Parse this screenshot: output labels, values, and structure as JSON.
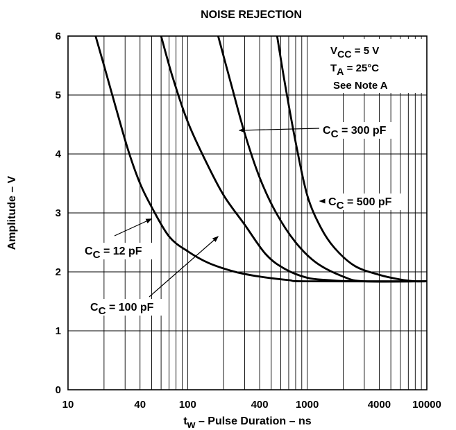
{
  "chart_data": {
    "type": "line",
    "title": "NOISE REJECTION",
    "xlabel": {
      "main": "t",
      "sub": "w",
      "rest": " – Pulse Duration – ns"
    },
    "ylabel": "Amplitude – V",
    "x_scale": "log",
    "xlim": [
      10,
      10000
    ],
    "ylim": [
      0,
      6
    ],
    "x_ticks": [
      {
        "value": 10,
        "label": "10"
      },
      {
        "value": 40,
        "label": "40"
      },
      {
        "value": 100,
        "label": "100"
      },
      {
        "value": 400,
        "label": "400"
      },
      {
        "value": 1000,
        "label": "1000"
      },
      {
        "value": 4000,
        "label": "4000"
      },
      {
        "value": 10000,
        "label": "10000"
      }
    ],
    "y_ticks": [
      0,
      1,
      2,
      3,
      4,
      5,
      6
    ],
    "grid": true,
    "conditions": [
      {
        "main": "V",
        "sub": "CC",
        "rest": " = 5 V"
      },
      {
        "main": "T",
        "sub": "A",
        "rest": " = 25°C"
      },
      {
        "main": "See Note A",
        "sub": "",
        "rest": ""
      }
    ],
    "series": [
      {
        "name": {
          "main": "C",
          "sub": "C",
          "rest": " = 12 pF"
        },
        "points": [
          [
            17,
            6
          ],
          [
            20,
            5.5
          ],
          [
            25,
            4.8
          ],
          [
            32,
            4.05
          ],
          [
            40,
            3.5
          ],
          [
            50,
            3.1
          ],
          [
            70,
            2.6
          ],
          [
            100,
            2.35
          ],
          [
            150,
            2.15
          ],
          [
            250,
            2.0
          ],
          [
            400,
            1.92
          ],
          [
            700,
            1.86
          ],
          [
            1000,
            1.84
          ],
          [
            10000,
            1.84
          ]
        ]
      },
      {
        "name": {
          "main": "C",
          "sub": "C",
          "rest": " = 100 pF"
        },
        "points": [
          [
            60,
            6
          ],
          [
            75,
            5.3
          ],
          [
            100,
            4.55
          ],
          [
            140,
            3.9
          ],
          [
            200,
            3.3
          ],
          [
            300,
            2.8
          ],
          [
            450,
            2.3
          ],
          [
            650,
            2.05
          ],
          [
            1000,
            1.9
          ],
          [
            1500,
            1.86
          ],
          [
            2500,
            1.84
          ],
          [
            10000,
            1.84
          ]
        ]
      },
      {
        "name": {
          "main": "C",
          "sub": "C",
          "rest": " = 300 pF"
        },
        "points": [
          [
            180,
            6
          ],
          [
            230,
            5.2
          ],
          [
            300,
            4.35
          ],
          [
            400,
            3.6
          ],
          [
            550,
            3.0
          ],
          [
            800,
            2.5
          ],
          [
            1200,
            2.15
          ],
          [
            2000,
            1.92
          ],
          [
            3000,
            1.84
          ],
          [
            10000,
            1.84
          ]
        ]
      },
      {
        "name": {
          "main": "C",
          "sub": "C",
          "rest": " = 500 pF"
        },
        "points": [
          [
            560,
            6
          ],
          [
            650,
            5.2
          ],
          [
            800,
            4.2
          ],
          [
            1000,
            3.3
          ],
          [
            1300,
            2.75
          ],
          [
            1700,
            2.4
          ],
          [
            2500,
            2.1
          ],
          [
            4000,
            1.95
          ],
          [
            6000,
            1.87
          ],
          [
            8000,
            1.84
          ],
          [
            10000,
            1.84
          ]
        ]
      }
    ],
    "annotations": [
      {
        "series": 0,
        "text": {
          "main": "C",
          "sub": "C",
          "rest": " = 12 pF"
        },
        "arrow_to": [
          50,
          2.9
        ]
      },
      {
        "series": 1,
        "text": {
          "main": "C",
          "sub": "C",
          "rest": " = 100 pF"
        },
        "arrow_to": [
          180,
          2.6
        ]
      },
      {
        "series": 2,
        "text": {
          "main": "C",
          "sub": "C",
          "rest": " = 300 pF"
        },
        "arrow_to": [
          270,
          4.4
        ]
      },
      {
        "series": 3,
        "text": {
          "main": "C",
          "sub": "C",
          "rest": " = 500 pF"
        },
        "arrow_to": [
          1270,
          3.2
        ]
      }
    ]
  }
}
